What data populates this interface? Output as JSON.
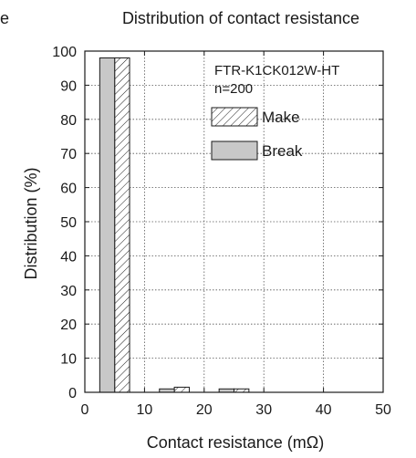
{
  "chart_data": {
    "type": "bar",
    "title": "Distribution of contact resistance",
    "corner_fragment": "e",
    "xlabel": "Contact resistance (mΩ)",
    "ylabel": "Distribution (%)",
    "xlim": [
      0,
      50
    ],
    "ylim": [
      0,
      100
    ],
    "xticks": [
      0,
      10,
      20,
      30,
      40,
      50
    ],
    "yticks": [
      0,
      10,
      20,
      30,
      40,
      50,
      60,
      70,
      80,
      90,
      100
    ],
    "grid": true,
    "legend_position": "top-right",
    "annotation": {
      "line1": "FTR-K1CK012W-HT",
      "line2": "n=200"
    },
    "series": [
      {
        "name": "Make",
        "pattern": "hatched",
        "color": "#ffffff",
        "stroke": "#1a1a1a",
        "bars": [
          {
            "x0": 5,
            "x1": 7.5,
            "value": 98
          },
          {
            "x0": 15,
            "x1": 17.5,
            "value": 1.5
          },
          {
            "x0": 25,
            "x1": 27.5,
            "value": 1
          }
        ]
      },
      {
        "name": "Break",
        "pattern": "solid",
        "color": "#c8c8c8",
        "stroke": "#1a1a1a",
        "bars": [
          {
            "x0": 2.5,
            "x1": 5,
            "value": 98
          },
          {
            "x0": 12.5,
            "x1": 15,
            "value": 1
          },
          {
            "x0": 22.5,
            "x1": 25,
            "value": 1
          }
        ]
      }
    ]
  }
}
